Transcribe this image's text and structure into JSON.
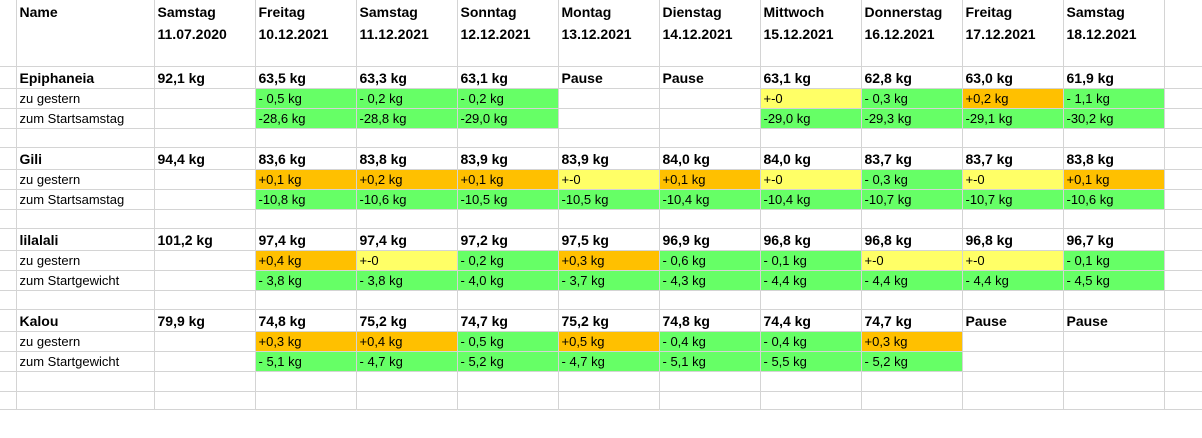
{
  "header": {
    "name_label": "Name",
    "columns": [
      {
        "day": "Samstag",
        "date": "11.07.2020"
      },
      {
        "day": "Freitag",
        "date": "10.12.2021"
      },
      {
        "day": "Samstag",
        "date": "11.12.2021"
      },
      {
        "day": "Sonntag",
        "date": "12.12.2021"
      },
      {
        "day": "Montag",
        "date": "13.12.2021"
      },
      {
        "day": "Dienstag",
        "date": "14.12.2021"
      },
      {
        "day": "Mittwoch",
        "date": "15.12.2021"
      },
      {
        "day": "Donnerstag",
        "date": "16.12.2021"
      },
      {
        "day": "Freitag",
        "date": "17.12.2021"
      },
      {
        "day": "Samstag",
        "date": "18.12.2021"
      }
    ]
  },
  "colors": {
    "green": "#66ff66",
    "orange": "#ffc000",
    "yellow": "#ffff66"
  },
  "people": [
    {
      "name": "Epiphaneia",
      "weights": [
        "92,1 kg",
        "63,5 kg",
        "63,3 kg",
        "63,1 kg",
        "Pause",
        "Pause",
        "63,1 kg",
        "62,8 kg",
        "63,0 kg",
        "61,9 kg"
      ],
      "row2_label": "zu gestern",
      "row2": [
        {
          "v": "",
          "c": ""
        },
        {
          "v": "- 0,5 kg",
          "c": "g"
        },
        {
          "v": "- 0,2 kg",
          "c": "g"
        },
        {
          "v": "- 0,2 kg",
          "c": "g"
        },
        {
          "v": "",
          "c": ""
        },
        {
          "v": "",
          "c": ""
        },
        {
          "v": "+-0",
          "c": "y"
        },
        {
          "v": "- 0,3 kg",
          "c": "g"
        },
        {
          "v": "+0,2 kg",
          "c": "o"
        },
        {
          "v": "- 1,1  kg",
          "c": "g"
        }
      ],
      "row3_label": "zum Startsamstag",
      "row3": [
        {
          "v": "",
          "c": ""
        },
        {
          "v": "-28,6 kg",
          "c": "g"
        },
        {
          "v": "-28,8 kg",
          "c": "g"
        },
        {
          "v": "-29,0 kg",
          "c": "g"
        },
        {
          "v": "",
          "c": ""
        },
        {
          "v": "",
          "c": ""
        },
        {
          "v": "-29,0 kg",
          "c": "g"
        },
        {
          "v": "-29,3 kg",
          "c": "g"
        },
        {
          "v": "-29,1 kg",
          "c": "g"
        },
        {
          "v": "-30,2 kg",
          "c": "g"
        }
      ]
    },
    {
      "name": "Gili",
      "weights": [
        "94,4 kg",
        "83,6 kg",
        "83,8 kg",
        "83,9 kg",
        "83,9 kg",
        "84,0 kg",
        "84,0 kg",
        "83,7 kg",
        "83,7 kg",
        "83,8 kg"
      ],
      "row2_label": "zu gestern",
      "row2": [
        {
          "v": "",
          "c": ""
        },
        {
          "v": "+0,1 kg",
          "c": "o"
        },
        {
          "v": "+0,2 kg",
          "c": "o"
        },
        {
          "v": "+0,1 kg",
          "c": "o"
        },
        {
          "v": "+-0",
          "c": "y"
        },
        {
          "v": "+0,1 kg",
          "c": "o"
        },
        {
          "v": "+-0",
          "c": "y"
        },
        {
          "v": "- 0,3 kg",
          "c": "g"
        },
        {
          "v": "+-0",
          "c": "y"
        },
        {
          "v": "+0,1 kg",
          "c": "o"
        }
      ],
      "row3_label": "zum Startsamstag",
      "row3": [
        {
          "v": "",
          "c": ""
        },
        {
          "v": "-10,8 kg",
          "c": "g"
        },
        {
          "v": "-10,6 kg",
          "c": "g"
        },
        {
          "v": "-10,5 kg",
          "c": "g"
        },
        {
          "v": "-10,5 kg",
          "c": "g"
        },
        {
          "v": "-10,4 kg",
          "c": "g"
        },
        {
          "v": "-10,4 kg",
          "c": "g"
        },
        {
          "v": "-10,7 kg",
          "c": "g"
        },
        {
          "v": "-10,7 kg",
          "c": "g"
        },
        {
          "v": "-10,6 kg",
          "c": "g"
        }
      ]
    },
    {
      "name": "lilalali",
      "weights": [
        "101,2 kg",
        "97,4 kg",
        "97,4 kg",
        "97,2  kg",
        "97,5 kg",
        "96,9 kg",
        "96,8 kg",
        "96,8 kg",
        "96,8 kg",
        "96,7 kg"
      ],
      "row2_label": "zu gestern",
      "row2": [
        {
          "v": "",
          "c": ""
        },
        {
          "v": "+0,4 kg",
          "c": "o"
        },
        {
          "v": "+-0",
          "c": "y"
        },
        {
          "v": "- 0,2 kg",
          "c": "g"
        },
        {
          "v": "+0,3 kg",
          "c": "o"
        },
        {
          "v": "- 0,6 kg",
          "c": "g"
        },
        {
          "v": "- 0,1 kg",
          "c": "g"
        },
        {
          "v": "+-0",
          "c": "y"
        },
        {
          "v": "+-0",
          "c": "y"
        },
        {
          "v": "- 0,1 kg",
          "c": "g"
        }
      ],
      "row3_label": "zum Startgewicht",
      "row3": [
        {
          "v": "",
          "c": ""
        },
        {
          "v": "- 3,8 kg",
          "c": "g"
        },
        {
          "v": "- 3,8 kg",
          "c": "g"
        },
        {
          "v": "- 4,0 kg",
          "c": "g"
        },
        {
          "v": "- 3,7 kg",
          "c": "g"
        },
        {
          "v": "- 4,3 kg",
          "c": "g"
        },
        {
          "v": "- 4,4 kg",
          "c": "g"
        },
        {
          "v": "- 4,4 kg",
          "c": "g"
        },
        {
          "v": "- 4,4 kg",
          "c": "g"
        },
        {
          "v": "- 4,5 kg",
          "c": "g"
        }
      ]
    },
    {
      "name": "Kalou",
      "weights": [
        "79,9 kg",
        "74,8 kg",
        "75,2 kg",
        "74,7 kg",
        "75,2 kg",
        "74,8 kg",
        "74,4 kg",
        "74,7 kg",
        "Pause",
        "Pause"
      ],
      "row2_label": "zu gestern",
      "row2": [
        {
          "v": "",
          "c": ""
        },
        {
          "v": "+0,3 kg",
          "c": "o"
        },
        {
          "v": "+0,4 kg",
          "c": "o"
        },
        {
          "v": "- 0,5 kg",
          "c": "g"
        },
        {
          "v": "+0,5 kg",
          "c": "o"
        },
        {
          "v": "- 0,4 kg",
          "c": "g"
        },
        {
          "v": "- 0,4 kg",
          "c": "g"
        },
        {
          "v": "+0,3 kg",
          "c": "o"
        },
        {
          "v": "",
          "c": ""
        },
        {
          "v": "",
          "c": ""
        }
      ],
      "row3_label": "zum Startgewicht",
      "row3": [
        {
          "v": "",
          "c": ""
        },
        {
          "v": "- 5,1 kg",
          "c": "g"
        },
        {
          "v": "- 4,7 kg",
          "c": "g"
        },
        {
          "v": "- 5,2 kg",
          "c": "g"
        },
        {
          "v": "- 4,7 kg",
          "c": "g"
        },
        {
          "v": "- 5,1 kg",
          "c": "g"
        },
        {
          "v": "- 5,5 kg",
          "c": "g"
        },
        {
          "v": "- 5,2 kg",
          "c": "g"
        },
        {
          "v": "",
          "c": ""
        },
        {
          "v": "",
          "c": ""
        }
      ]
    }
  ]
}
